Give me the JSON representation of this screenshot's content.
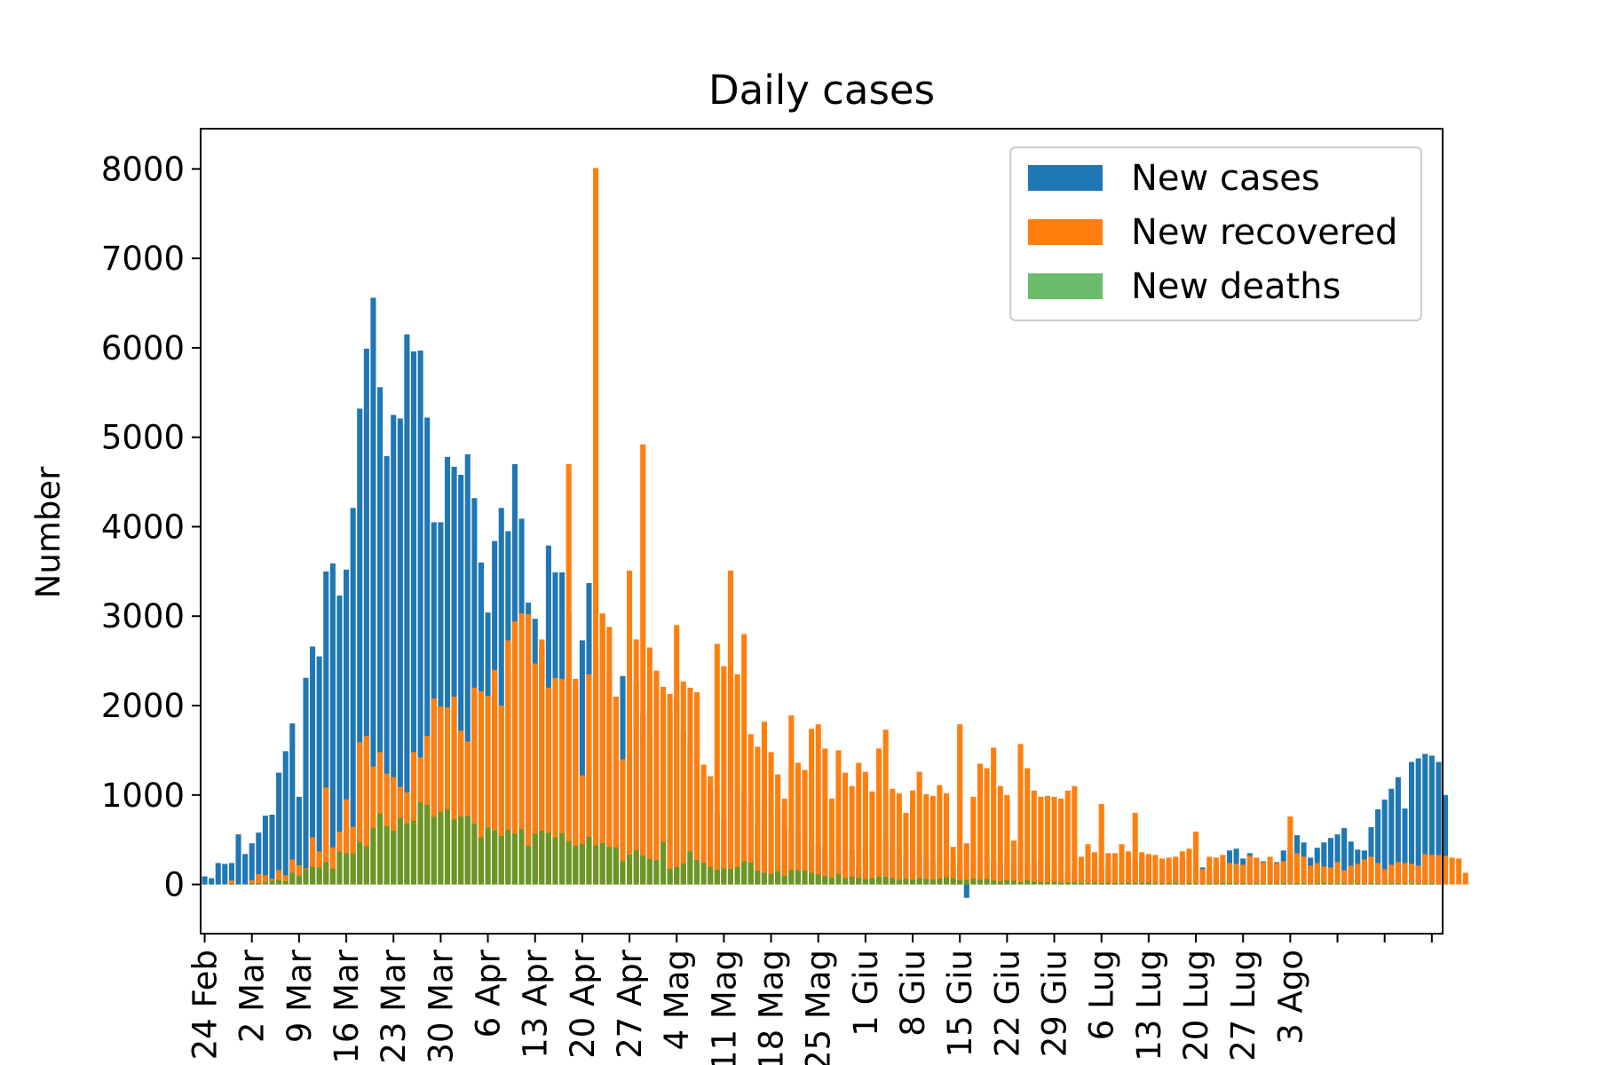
{
  "chart_data": {
    "type": "bar",
    "title": "Daily cases",
    "ylabel": "Number",
    "xlabel": "",
    "ylim": [
      -550,
      8450
    ],
    "yticks": [
      0,
      1000,
      2000,
      3000,
      4000,
      5000,
      6000,
      7000,
      8000
    ],
    "start_index": 0,
    "xlim": [
      -0.6,
      183.6
    ],
    "xtick_positions": [
      0,
      7,
      14,
      21,
      28,
      35,
      42,
      49,
      56,
      63,
      70,
      77,
      84,
      91,
      98,
      105,
      112,
      119,
      126,
      133,
      140,
      147,
      154,
      161,
      168,
      175,
      182
    ],
    "xtick_labels": [
      "24 Feb",
      "2 Mar",
      "9 Mar",
      "16 Mar",
      "23 Mar",
      "30 Mar",
      "6 Apr",
      "13 Apr",
      "20 Apr",
      "27 Apr",
      "4 Mag",
      "11 Mag",
      "18 Mag",
      "25 Mag",
      "1 Giu",
      "8 Giu",
      "15 Giu",
      "22 Giu",
      "29 Giu",
      "6 Lug",
      "13 Lug",
      "20 Lug",
      "27 Lug",
      "3 Ago",
      "",
      "",
      ""
    ],
    "legend_position": "upper right",
    "grid": false,
    "series": [
      {
        "name": "New cases",
        "color": "#1f77b4",
        "values": [
          90,
          70,
          240,
          230,
          240,
          560,
          340,
          460,
          580,
          770,
          780,
          1250,
          1490,
          1800,
          980,
          2310,
          2660,
          2550,
          3500,
          3590,
          3230,
          3520,
          4210,
          5320,
          5990,
          6560,
          5560,
          4790,
          5250,
          5210,
          6150,
          5960,
          5970,
          5220,
          4050,
          4050,
          4780,
          4670,
          4580,
          4810,
          4320,
          3600,
          3040,
          3840,
          4210,
          3950,
          4700,
          4090,
          3150,
          2970,
          2670,
          3790,
          3490,
          3490,
          3050,
          2260,
          2730,
          3370,
          2650,
          3020,
          2360,
          2100,
          2330,
          1740,
          2260,
          1900,
          1650,
          1070,
          2010,
          1940,
          2090,
          1730,
          1580,
          1450,
          1220,
          1080,
          800,
          740,
          1400,
          1080,
          1000,
          880,
          690,
          890,
          740,
          840,
          660,
          640,
          590,
          640,
          480,
          450,
          420,
          320,
          460,
          390,
          380,
          190,
          400,
          410,
          510,
          510,
          420,
          400,
          340,
          340,
          330,
          310,
          250,
          300,
          260,
          290,
          200,
          -150,
          300,
          310,
          330,
          260,
          220,
          330,
          200,
          190,
          220,
          240,
          260,
          190,
          190,
          130,
          130,
          140,
          170,
          190,
          210,
          190,
          200,
          240,
          230,
          250,
          280,
          300,
          320,
          320,
          250,
          210,
          280,
          280,
          300,
          220,
          190,
          170,
          190,
          230,
          380,
          400,
          290,
          350,
          280,
          260,
          250,
          250,
          380,
          410,
          550,
          470,
          300,
          410,
          470,
          520,
          560,
          630,
          480,
          390,
          380,
          640,
          840,
          950,
          1070,
          1200,
          850,
          1370,
          1410,
          1460,
          1440,
          1370,
          1000
        ]
      },
      {
        "name": "New recovered",
        "color": "#ff7f0e",
        "values": [
          2,
          1,
          1,
          3,
          45,
          4,
          1,
          46,
          116,
          102,
          62,
          160,
          102,
          280,
          213,
          181,
          527,
          369,
          1084,
          415,
          589,
          952,
          646,
          1590,
          1660,
          1320,
          1480,
          1240,
          1200,
          1090,
          1030,
          1480,
          1420,
          1660,
          2080,
          1990,
          1980,
          2100,
          1720,
          1600,
          2200,
          2160,
          2110,
          2400,
          2000,
          2730,
          2940,
          3030,
          3020,
          2470,
          2740,
          2200,
          2310,
          2300,
          4700,
          2300,
          1220,
          2350,
          8010,
          3030,
          2880,
          2100,
          1400,
          3510,
          2740,
          4920,
          2650,
          2390,
          2210,
          2130,
          2900,
          2270,
          2200,
          2150,
          1340,
          1210,
          2690,
          2440,
          3510,
          2350,
          2800,
          1680,
          1540,
          1820,
          1480,
          1230,
          960,
          1890,
          1360,
          1280,
          1740,
          1790,
          1520,
          960,
          1500,
          1250,
          1100,
          1360,
          1260,
          1040,
          1520,
          1730,
          1070,
          1020,
          800,
          1050,
          1260,
          1010,
          990,
          1110,
          1020,
          420,
          1790,
          460,
          980,
          1350,
          1300,
          1530,
          1100,
          1000,
          490,
          1570,
          1300,
          1050,
          980,
          990,
          980,
          960,
          1050,
          1100,
          310,
          450,
          360,
          900,
          350,
          350,
          450,
          370,
          800,
          360,
          340,
          330,
          290,
          300,
          310,
          370,
          400,
          590,
          170,
          310,
          300,
          330,
          240,
          230,
          220,
          320,
          300,
          250,
          310,
          240,
          260,
          760,
          350,
          310,
          210,
          240,
          200,
          190,
          250,
          160,
          210,
          230,
          280,
          310,
          240,
          170,
          220,
          250,
          240,
          230,
          210,
          340,
          330,
          330,
          320,
          300,
          290,
          130
        ]
      },
      {
        "name": "New deaths",
        "color": "#2ca02c",
        "values": [
          7,
          4,
          1,
          5,
          11,
          8,
          4,
          12,
          11,
          27,
          41,
          49,
          36,
          133,
          97,
          168,
          196,
          189,
          250,
          175,
          368,
          349,
          345,
          475,
          427,
          627,
          793,
          651,
          601,
          743,
          683,
          712,
          919,
          889,
          756,
          812,
          837,
          727,
          760,
          766,
          681,
          525,
          636,
          604,
          542,
          610,
          570,
          619,
          431,
          566,
          602,
          578,
          525,
          575,
          482,
          433,
          454,
          534,
          437,
          464,
          420,
          415,
          260,
          333,
          382,
          323,
          285,
          269,
          474,
          174,
          195,
          236,
          369,
          274,
          243,
          194,
          165,
          179,
          172,
          195,
          262,
          242,
          153,
          130,
          119,
          145,
          99,
          162,
          161,
          156,
          130,
          111,
          92,
          78,
          117,
          70,
          87,
          75,
          60,
          71,
          88,
          85,
          72,
          53,
          65,
          55,
          71,
          60,
          56,
          65,
          79,
          72,
          47,
          53,
          65,
          53,
          61,
          44,
          34,
          47,
          43,
          26,
          49,
          30,
          27,
          24,
          30,
          21,
          22,
          23,
          16,
          14,
          21,
          13,
          20,
          15,
          12,
          21,
          13,
          18,
          22,
          11,
          12,
          14,
          15,
          9,
          14,
          11,
          8,
          12,
          10,
          15,
          14,
          12,
          13,
          10,
          11,
          9,
          12,
          9,
          13,
          8,
          15,
          12,
          9,
          10,
          14,
          12,
          11,
          13,
          9,
          12,
          10,
          14,
          11,
          9,
          13,
          12,
          10,
          11,
          9,
          12,
          10,
          8
        ]
      }
    ]
  }
}
